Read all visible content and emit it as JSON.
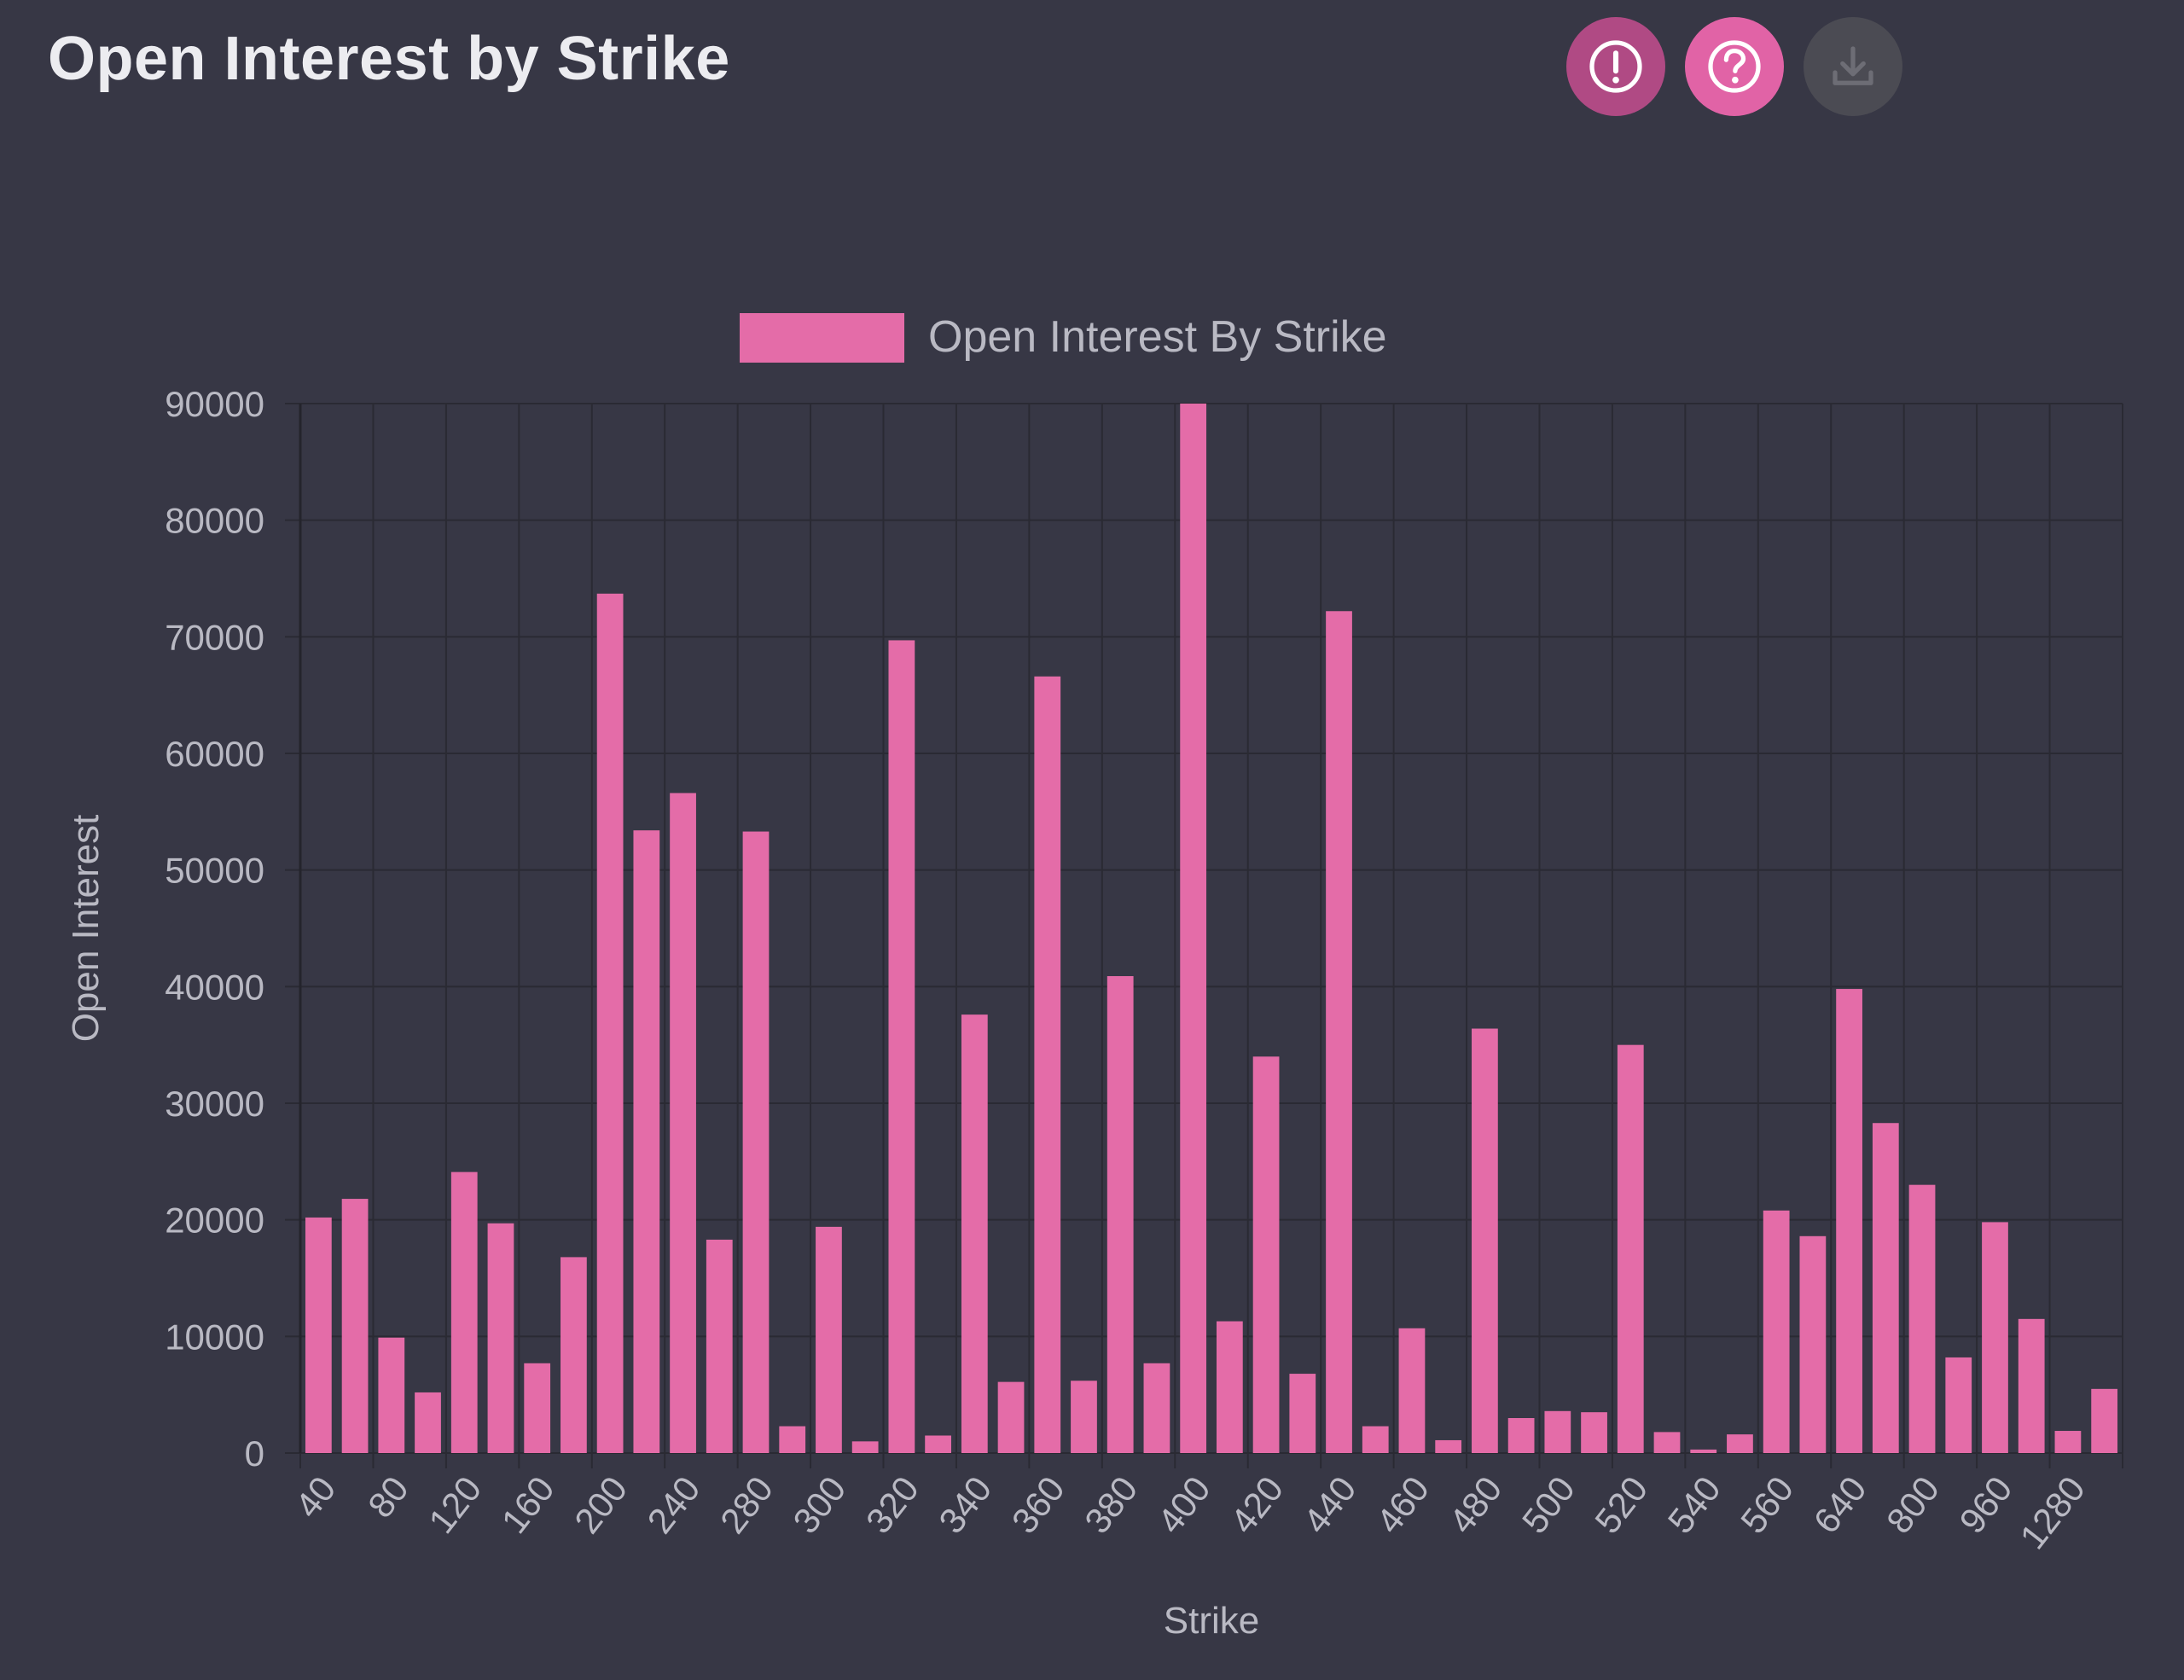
{
  "header": {
    "title": "Open Interest by Strike"
  },
  "toolbar": {
    "buttons": [
      {
        "name": "alert-button",
        "icon": "exclamation-circle-icon",
        "color": "#b04a84"
      },
      {
        "name": "help-button",
        "icon": "question-circle-icon",
        "color": "#e163a6"
      },
      {
        "name": "download-button",
        "icon": "download-icon",
        "color": "#4b4b53"
      }
    ]
  },
  "colors": {
    "background": "#373745",
    "bar": "#e46ca8",
    "grid": "#2a2a33",
    "text": "#b9b9c3"
  },
  "chart_data": {
    "type": "bar",
    "legend": {
      "label": "Open Interest By Strike",
      "position": "top"
    },
    "xlabel": "Strike",
    "ylabel": "Open Interest",
    "ylim": [
      0,
      90000
    ],
    "yticks": [
      0,
      10000,
      20000,
      30000,
      40000,
      50000,
      60000,
      70000,
      80000,
      90000
    ],
    "grid": true,
    "x_tick_labels": [
      "40",
      "80",
      "120",
      "160",
      "200",
      "240",
      "280",
      "300",
      "320",
      "340",
      "360",
      "380",
      "400",
      "420",
      "440",
      "460",
      "480",
      "500",
      "520",
      "540",
      "560",
      "640",
      "800",
      "960",
      "1280"
    ],
    "values": [
      20200,
      21800,
      9900,
      5200,
      24100,
      19700,
      7700,
      16800,
      73700,
      53400,
      56600,
      18300,
      53300,
      2300,
      19400,
      1000,
      69700,
      1500,
      37600,
      6100,
      66600,
      6200,
      40900,
      7700,
      90000,
      11300,
      34000,
      6800,
      72200,
      2300,
      10700,
      1100,
      36400,
      3000,
      3600,
      3500,
      35000,
      1800,
      300,
      1600,
      20800,
      18600,
      39800,
      28300,
      23000,
      8200,
      19800,
      11500,
      1900,
      5500
    ]
  }
}
